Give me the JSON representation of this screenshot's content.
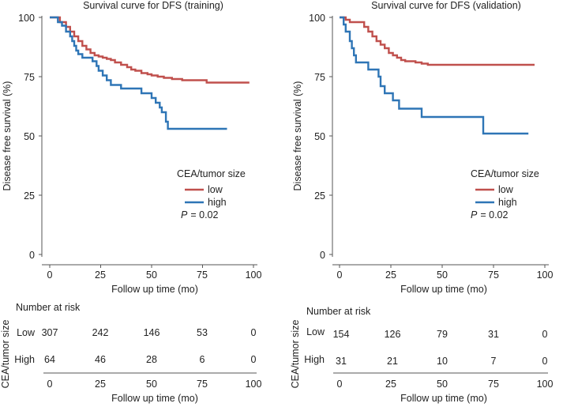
{
  "colors": {
    "low": "#c0504d",
    "high": "#2e75b6"
  },
  "panels": [
    {
      "title": "Survival curve for DFS (training)",
      "ylabel": "Disease free survival (%)",
      "xlabel": "Follow up time (mo)",
      "legend_title": "CEA/tumor size",
      "legend_low": "low",
      "legend_high": "high",
      "p_label": "P",
      "p_value": "= 0.02",
      "risk_header": "Number at risk",
      "risk_ylabel": "CEA/tumor size",
      "risk_row_low": "Low",
      "risk_row_high": "High",
      "risk_xlabel": "Follow up time (mo)",
      "risk_low": [
        "307",
        "242",
        "146",
        "53",
        "0"
      ],
      "risk_high": [
        "64",
        "46",
        "28",
        "6",
        "0"
      ]
    },
    {
      "title": "Survival curve for DFS (validation)",
      "ylabel": "Disease free survival (%)",
      "xlabel": "Follow up time (mo)",
      "legend_title": "CEA/tumor size",
      "legend_low": "low",
      "legend_high": "high",
      "p_label": "P",
      "p_value": "= 0.02",
      "risk_header": "Number at risk",
      "risk_ylabel": "CEA/tumor size",
      "risk_row_low": "Low",
      "risk_row_high": "High",
      "risk_xlabel": "Follow up time (mo)",
      "risk_low": [
        "154",
        "126",
        "79",
        "31",
        "0"
      ],
      "risk_high": [
        "31",
        "21",
        "10",
        "7",
        "0"
      ]
    }
  ],
  "chart_data": [
    {
      "type": "line",
      "title": "Survival curve for DFS (training)",
      "xlabel": "Follow up time (mo)",
      "ylabel": "Disease free survival (%)",
      "xlim": [
        0,
        100
      ],
      "ylim": [
        0,
        100
      ],
      "x_ticks": [
        "0",
        "25",
        "50",
        "75",
        "100"
      ],
      "y_ticks": [
        "0",
        "25",
        "50",
        "75",
        "100"
      ],
      "legend_title": "CEA/tumor size",
      "p_value": "P = 0.02",
      "series": [
        {
          "name": "low",
          "points": [
            [
              0,
              100
            ],
            [
              3,
              100
            ],
            [
              5,
              98
            ],
            [
              8,
              96
            ],
            [
              10,
              94
            ],
            [
              12,
              92
            ],
            [
              14,
              90
            ],
            [
              16,
              88
            ],
            [
              18,
              86.5
            ],
            [
              20,
              85
            ],
            [
              22,
              84
            ],
            [
              24,
              83.5
            ],
            [
              26,
              83
            ],
            [
              28,
              82.5
            ],
            [
              30,
              82
            ],
            [
              32,
              81
            ],
            [
              35,
              80
            ],
            [
              38,
              79
            ],
            [
              40,
              78
            ],
            [
              42,
              77.5
            ],
            [
              45,
              76.5
            ],
            [
              48,
              76
            ],
            [
              50,
              75.5
            ],
            [
              53,
              75
            ],
            [
              56,
              74.5
            ],
            [
              60,
              74
            ],
            [
              65,
              73.5
            ],
            [
              70,
              73.5
            ],
            [
              77,
              73.5
            ],
            [
              77,
              72.5
            ],
            [
              98,
              72.5
            ]
          ]
        },
        {
          "name": "high",
          "points": [
            [
              0,
              100
            ],
            [
              4,
              100
            ],
            [
              4,
              98
            ],
            [
              6,
              96.5
            ],
            [
              8,
              94
            ],
            [
              10,
              92
            ],
            [
              11,
              90
            ],
            [
              12,
              88
            ],
            [
              13,
              86
            ],
            [
              14,
              84.5
            ],
            [
              16,
              83
            ],
            [
              20,
              83
            ],
            [
              21,
              81.5
            ],
            [
              23,
              79.5
            ],
            [
              24,
              77.5
            ],
            [
              26,
              75.5
            ],
            [
              28,
              73.5
            ],
            [
              30,
              71.5
            ],
            [
              35,
              71.5
            ],
            [
              35,
              70
            ],
            [
              45,
              70
            ],
            [
              45,
              68
            ],
            [
              50,
              68
            ],
            [
              50,
              66
            ],
            [
              52,
              66
            ],
            [
              52,
              64
            ],
            [
              54,
              62
            ],
            [
              55,
              60
            ],
            [
              57,
              58
            ],
            [
              57,
              56
            ],
            [
              58,
              53
            ],
            [
              87,
              53
            ]
          ]
        }
      ]
    },
    {
      "type": "line",
      "title": "Survival curve for DFS (validation)",
      "xlabel": "Follow up time (mo)",
      "ylabel": "Disease free survival (%)",
      "xlim": [
        0,
        100
      ],
      "ylim": [
        0,
        100
      ],
      "x_ticks": [
        "0",
        "25",
        "50",
        "75",
        "100"
      ],
      "y_ticks": [
        "0",
        "25",
        "50",
        "75",
        "100"
      ],
      "legend_title": "CEA/tumor size",
      "p_value": "P = 0.02",
      "series": [
        {
          "name": "low",
          "points": [
            [
              0,
              100
            ],
            [
              2,
              100
            ],
            [
              3,
              99
            ],
            [
              5,
              98
            ],
            [
              11,
              98
            ],
            [
              12,
              96
            ],
            [
              14,
              94
            ],
            [
              16,
              92
            ],
            [
              18,
              90
            ],
            [
              20,
              88.5
            ],
            [
              22,
              87
            ],
            [
              24,
              85
            ],
            [
              26,
              84
            ],
            [
              28,
              83
            ],
            [
              30,
              82
            ],
            [
              32,
              81.5
            ],
            [
              35,
              81.5
            ],
            [
              37,
              81
            ],
            [
              40,
              80.5
            ],
            [
              43,
              80
            ],
            [
              95,
              80
            ]
          ]
        },
        {
          "name": "high",
          "points": [
            [
              0,
              100
            ],
            [
              2,
              100
            ],
            [
              2,
              97
            ],
            [
              3,
              94
            ],
            [
              5,
              90
            ],
            [
              6,
              87
            ],
            [
              7,
              84
            ],
            [
              8,
              81
            ],
            [
              14,
              81
            ],
            [
              14,
              78
            ],
            [
              19,
              78
            ],
            [
              19,
              75
            ],
            [
              20,
              71
            ],
            [
              22,
              68
            ],
            [
              26,
              68
            ],
            [
              26,
              65
            ],
            [
              29,
              65
            ],
            [
              29,
              61.5
            ],
            [
              40,
              61.5
            ],
            [
              40,
              58
            ],
            [
              70,
              58
            ],
            [
              70,
              51
            ],
            [
              92,
              51
            ]
          ]
        }
      ]
    }
  ]
}
